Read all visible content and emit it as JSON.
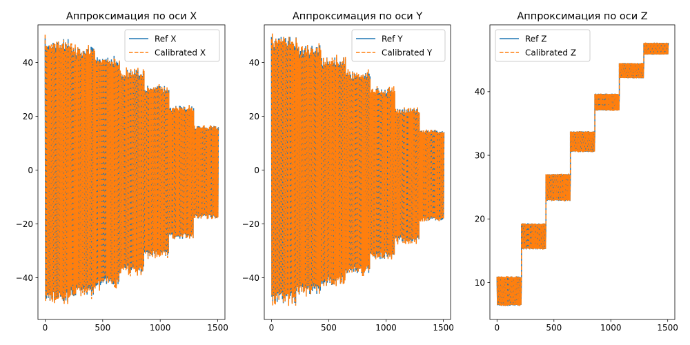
{
  "chart_data": [
    {
      "type": "line",
      "title": "Аппроксимация по оси X",
      "xlim": [
        -62.5,
        1562.5
      ],
      "ylim": [
        -55.5,
        54
      ],
      "xticks": [
        0,
        500,
        1000,
        1500
      ],
      "yticks": [
        -40,
        -20,
        0,
        20,
        40
      ],
      "legend": "top-right",
      "grid": false,
      "series": [
        {
          "name": "Ref X",
          "color": "#1f77b4",
          "style": "solid"
        },
        {
          "name": "Calibrated X",
          "color": "#ff7f0e",
          "style": "dashed"
        }
      ],
      "segments": [
        {
          "x_start": 0,
          "x_end": 215,
          "low": -49,
          "high": 49
        },
        {
          "x_start": 215,
          "x_end": 430,
          "low": -47,
          "high": 46
        },
        {
          "x_start": 430,
          "x_end": 645,
          "low": -43.5,
          "high": 42.5
        },
        {
          "x_start": 645,
          "x_end": 860,
          "low": -38.5,
          "high": 37.5
        },
        {
          "x_start": 860,
          "x_end": 1075,
          "low": -32.5,
          "high": 31.5
        },
        {
          "x_start": 1075,
          "x_end": 1290,
          "low": -25.5,
          "high": 24
        },
        {
          "x_start": 1290,
          "x_end": 1505,
          "low": -18,
          "high": 16.5
        }
      ]
    },
    {
      "type": "line",
      "title": "Аппроксимация по оси Y",
      "xlim": [
        -62.5,
        1562.5
      ],
      "ylim": [
        -55.5,
        54
      ],
      "xticks": [
        0,
        500,
        1000,
        1500
      ],
      "yticks": [
        -40,
        -20,
        0,
        20,
        40
      ],
      "legend": "top-right",
      "grid": false,
      "series": [
        {
          "name": "Ref Y",
          "color": "#1f77b4",
          "style": "solid"
        },
        {
          "name": "Calibrated Y",
          "color": "#ff7f0e",
          "style": "dashed"
        }
      ],
      "segments": [
        {
          "x_start": 0,
          "x_end": 215,
          "low": -49.5,
          "high": 49.5
        },
        {
          "x_start": 215,
          "x_end": 430,
          "low": -46.5,
          "high": 46.5
        },
        {
          "x_start": 430,
          "x_end": 645,
          "low": -43,
          "high": 42
        },
        {
          "x_start": 645,
          "x_end": 860,
          "low": -38.5,
          "high": 37
        },
        {
          "x_start": 860,
          "x_end": 1075,
          "low": -33,
          "high": 30.5
        },
        {
          "x_start": 1075,
          "x_end": 1290,
          "low": -27,
          "high": 23
        },
        {
          "x_start": 1290,
          "x_end": 1505,
          "low": -19,
          "high": 15
        }
      ]
    },
    {
      "type": "line",
      "title": "Аппроксимация по оси Z",
      "xlim": [
        -62.5,
        1562.5
      ],
      "ylim": [
        4.2,
        50.5
      ],
      "xticks": [
        0,
        500,
        1000,
        1500
      ],
      "yticks": [
        10,
        20,
        30,
        40
      ],
      "legend": "top-left",
      "grid": false,
      "series": [
        {
          "name": "Ref Z",
          "color": "#1f77b4",
          "style": "solid"
        },
        {
          "name": "Calibrated Z",
          "color": "#ff7f0e",
          "style": "dashed"
        }
      ],
      "segments": [
        {
          "x_start": 0,
          "x_end": 215,
          "low": 6.3,
          "high": 11
        },
        {
          "x_start": 215,
          "x_end": 430,
          "low": 15.2,
          "high": 19.3
        },
        {
          "x_start": 430,
          "x_end": 645,
          "low": 22.8,
          "high": 27.1
        },
        {
          "x_start": 645,
          "x_end": 860,
          "low": 30.5,
          "high": 33.8
        },
        {
          "x_start": 860,
          "x_end": 1075,
          "low": 37,
          "high": 39.7
        },
        {
          "x_start": 1075,
          "x_end": 1290,
          "low": 42.1,
          "high": 44.5
        },
        {
          "x_start": 1290,
          "x_end": 1505,
          "low": 45.8,
          "high": 47.7
        }
      ]
    }
  ]
}
